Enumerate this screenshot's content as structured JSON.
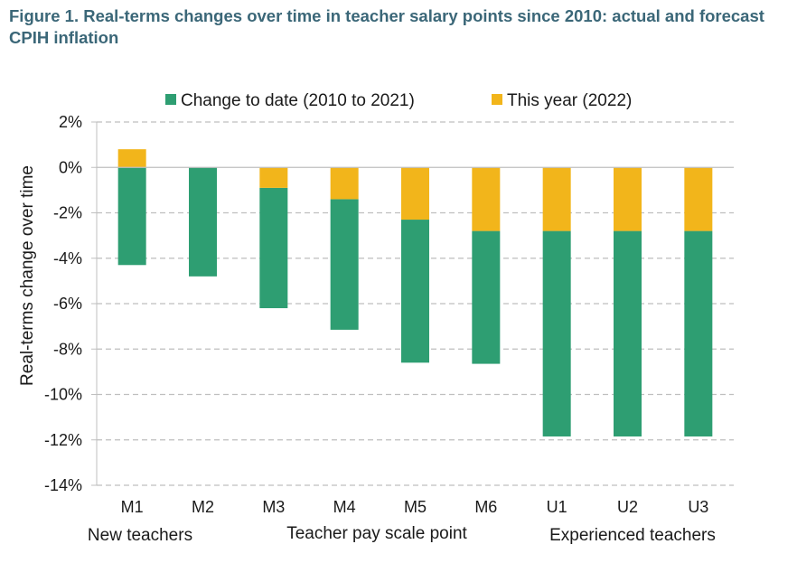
{
  "figure_title": "Figure 1. Real-terms changes over time in teacher salary points since 2010: actual and forecast CPIH inflation",
  "colors": {
    "to_date": "#2e9e72",
    "this_year": "#f2b51b",
    "grid": "#bfbfbf",
    "title": "#3b6778"
  },
  "chart_data": {
    "type": "bar",
    "stacked": true,
    "categories": [
      "M1",
      "M2",
      "M3",
      "M4",
      "M5",
      "M6",
      "U1",
      "U2",
      "U3"
    ],
    "series": [
      {
        "name": "Change to date (2010 to 2021)",
        "start": [
          0,
          0,
          -0.9,
          -1.4,
          -2.3,
          -2.8,
          -2.8,
          -2.8,
          -2.8
        ],
        "end": [
          -4.3,
          -4.8,
          -6.2,
          -7.15,
          -8.6,
          -8.65,
          -11.85,
          -11.85,
          -11.85
        ],
        "color": "#2e9e72"
      },
      {
        "name": "This year (2022)",
        "start": [
          0,
          0,
          0,
          0,
          0,
          0,
          0,
          0,
          0
        ],
        "end": [
          0.8,
          0,
          -0.9,
          -1.4,
          -2.3,
          -2.8,
          -2.8,
          -2.8,
          -2.8
        ],
        "color": "#f2b51b"
      }
    ],
    "ylim": [
      -14,
      2
    ],
    "yticks": [
      2,
      0,
      -2,
      -4,
      -6,
      -8,
      -10,
      -12,
      -14
    ],
    "ytick_labels": [
      "2%",
      "0%",
      "-2%",
      "-4%",
      "-6%",
      "-8%",
      "-10%",
      "-12%",
      "-14%"
    ],
    "ylabel": "Real-terms change over time",
    "xlabel": "Teacher pay scale point",
    "group_labels": {
      "left": "New teachers",
      "right": "Experienced teachers"
    },
    "grid": true,
    "legend_position": "top"
  }
}
